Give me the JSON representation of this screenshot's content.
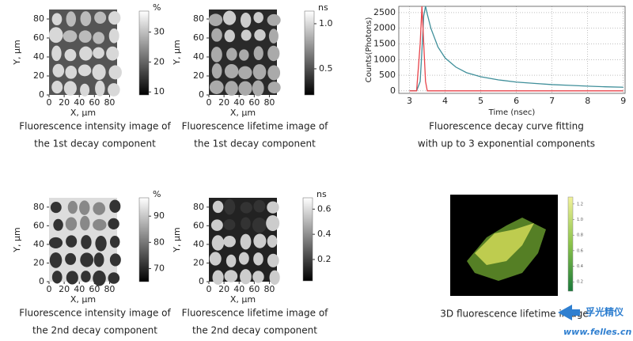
{
  "panels": [
    {
      "xlabel": "X, μm",
      "ylabel": "Y, μm",
      "xlim": [
        0,
        90
      ],
      "ylim": [
        0,
        90
      ],
      "xticks": [
        0,
        20,
        40,
        60,
        80
      ],
      "yticks": [
        0,
        20,
        40,
        60,
        80
      ],
      "colorbar": {
        "unit": "%",
        "lim": [
          9,
          37
        ],
        "ticks": [
          10,
          20,
          30
        ]
      },
      "caption": [
        "Fluorescence intensity image of",
        "the 1st decay component"
      ]
    },
    {
      "xlabel": "X, μm",
      "ylabel": "Y, μm",
      "xlim": [
        0,
        90
      ],
      "ylim": [
        0,
        90
      ],
      "xticks": [
        0,
        20,
        40,
        60,
        80
      ],
      "yticks": [
        0,
        20,
        40,
        60,
        80
      ],
      "colorbar": {
        "unit": "ns",
        "lim": [
          0.21,
          1.14
        ],
        "ticks": [
          {
            "value": 1,
            "label": "1.0"
          },
          0.5
        ]
      },
      "caption": [
        "Fluorescence lifetime image of",
        "the 1st decay component"
      ]
    },
    {
      "xlabel": "X, μm",
      "ylabel": "Y, μm",
      "xlim": [
        0,
        90
      ],
      "ylim": [
        0,
        90
      ],
      "xticks": [
        0,
        20,
        40,
        60,
        80
      ],
      "yticks": [
        0,
        20,
        40,
        60,
        80
      ],
      "colorbar": {
        "unit": "%",
        "lim": [
          65,
          97
        ],
        "ticks": [
          90,
          80,
          70
        ]
      },
      "caption": [
        "Fluorescence intensity image of",
        "the 2nd decay component"
      ]
    },
    {
      "xlabel": "X, μm",
      "ylabel": "Y, μm",
      "xlim": [
        0,
        90
      ],
      "ylim": [
        0,
        90
      ],
      "xticks": [
        0,
        20,
        40,
        60,
        80
      ],
      "yticks": [
        0,
        20,
        40,
        60,
        80
      ],
      "colorbar": {
        "unit": "ns",
        "lim": [
          0.03,
          0.69
        ],
        "ticks": [
          0.6,
          0.4,
          0.2
        ]
      },
      "caption": [
        "Fluorescence lifetime image of",
        "the 2nd decay component"
      ]
    }
  ],
  "chart_data": {
    "type": "line",
    "xlabel": "Time (nsec)",
    "ylabel": "Counts(Photons)",
    "x": [
      3.0,
      3.2,
      3.3,
      3.35,
      3.4,
      3.45,
      3.5,
      3.6,
      3.8,
      4.0,
      4.3,
      4.6,
      5.0,
      5.5,
      6,
      6.5,
      7,
      7.5,
      8,
      8.5,
      9
    ],
    "series": [
      {
        "color": "#3f8f9a",
        "values": [
          0,
          0,
          300,
          1300,
          2400,
          2700,
          2450,
          2000,
          1400,
          1050,
          760,
          580,
          450,
          350,
          280,
          240,
          200,
          175,
          150,
          130,
          115
        ]
      },
      {
        "color": "#e8434a",
        "values": [
          0,
          0,
          1500,
          2700,
          1500,
          300,
          0,
          0,
          0,
          0,
          0,
          0,
          0,
          0,
          0,
          0,
          0,
          0,
          0,
          0,
          0
        ]
      }
    ],
    "xlim": [
      2.7,
      9.05
    ],
    "ylim": [
      -80,
      2700
    ],
    "xticks": [
      3,
      4,
      5,
      6,
      7,
      8,
      9
    ],
    "yticks": [
      0,
      500,
      1000,
      1500,
      2000,
      2500
    ],
    "grid": true,
    "caption": [
      "Fluorescence decay curve fitting",
      "with up to 3 exponential components"
    ]
  },
  "panel3d": {
    "colorbar": {
      "lim": [
        0.08,
        1.29
      ],
      "ticks": [
        {
          "value": 1.2,
          "label": "1.2"
        },
        {
          "value": 1,
          "label": "1.0"
        },
        0.8,
        0.6,
        0.4,
        0.2
      ]
    },
    "caption": "3D fluorescence lifetime image"
  },
  "watermark": {
    "brand": "孚光精仪",
    "url": "www.felles.cn"
  }
}
